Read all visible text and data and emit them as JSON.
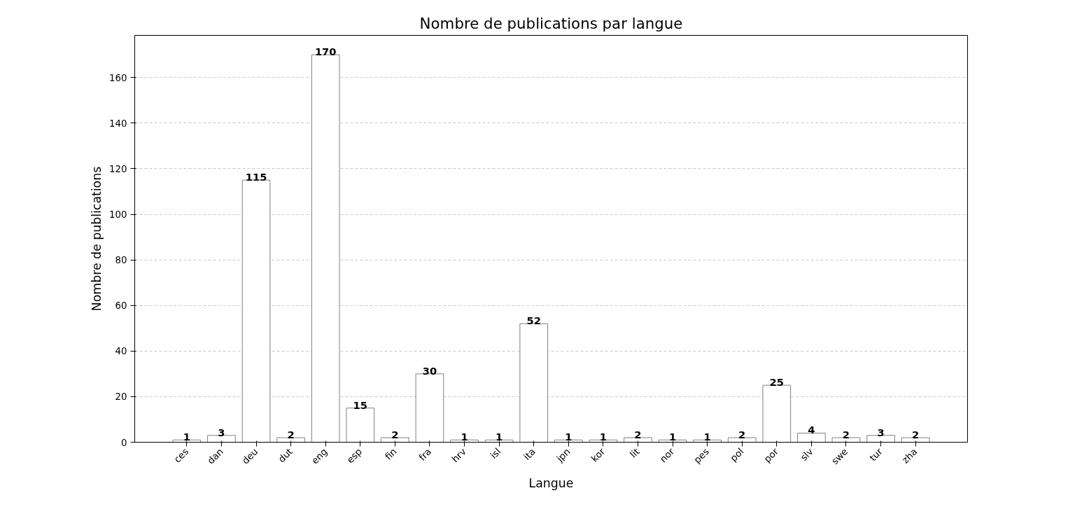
{
  "chart_data": {
    "type": "bar",
    "title": "Nombre de publications par langue",
    "xlabel": "Langue",
    "ylabel": "Nombre de publications",
    "categories": [
      "ces",
      "dan",
      "deu",
      "dut",
      "eng",
      "esp",
      "fin",
      "fra",
      "hrv",
      "isl",
      "ita",
      "jpn",
      "kor",
      "lit",
      "nor",
      "pes",
      "pol",
      "por",
      "slv",
      "swe",
      "tur",
      "zha"
    ],
    "values": [
      1,
      3,
      115,
      2,
      170,
      15,
      2,
      30,
      1,
      1,
      52,
      1,
      1,
      2,
      1,
      1,
      2,
      25,
      4,
      2,
      3,
      2
    ],
    "color": "#ffffff",
    "ylim": [
      0,
      178.5
    ],
    "yticks": [
      0,
      20,
      40,
      60,
      80,
      100,
      120,
      140,
      160
    ],
    "grid": "y",
    "data_labels": true
  }
}
